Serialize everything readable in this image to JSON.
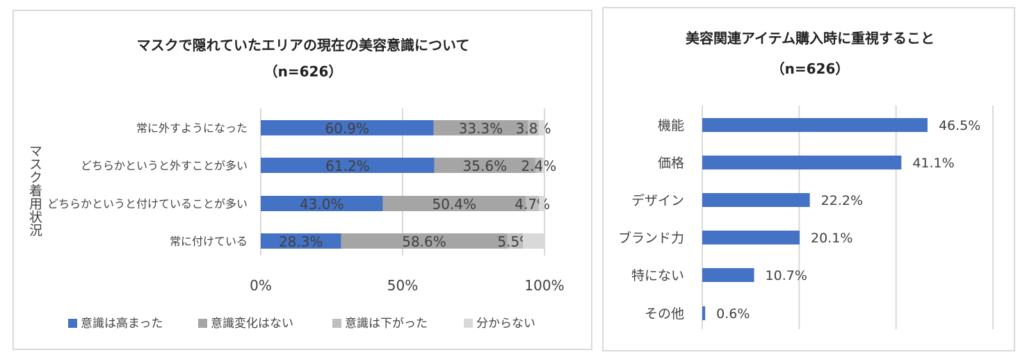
{
  "chart_data": [
    {
      "type": "bar",
      "orientation": "horizontal",
      "stacked": "percent",
      "title": "マスクで隠れていたエリアの現在の美容意識について",
      "subtitle": "（n=626）",
      "ylabel": "マスク着用状況",
      "categories": [
        "常に外すようになった",
        "どちらかというと外すことが多い",
        "どちらかというと付けていることが多い",
        "常に付けている"
      ],
      "series": [
        {
          "name": "意識は高まった",
          "color": "#4472c4",
          "values": [
            60.9,
            61.2,
            43.0,
            28.3
          ],
          "labels": [
            "60.9%",
            "61.2%",
            "43.0%",
            "28.3%"
          ]
        },
        {
          "name": "意識変化はない",
          "color": "#a5a5a5",
          "values": [
            33.3,
            35.6,
            50.4,
            58.6
          ],
          "labels": [
            "33.3%",
            "35.6%",
            "50.4%",
            "58.6%"
          ]
        },
        {
          "name": "意識は下がった",
          "color": "#bfbfbf",
          "values": [
            3.8,
            2.4,
            4.7,
            5.5
          ],
          "labels": [
            "3.8%",
            "2.4%",
            "4.7%",
            "5.5%"
          ]
        },
        {
          "name": "分からない",
          "color": "#d9d9d9",
          "values": [
            2.0,
            0.8,
            1.9,
            7.6
          ],
          "labels": [
            "",
            "",
            "",
            ""
          ]
        }
      ],
      "xticks": [
        "0%",
        "50%",
        "100%"
      ],
      "xlim": [
        0,
        100
      ],
      "grid": true,
      "legend": "bottom"
    },
    {
      "type": "bar",
      "orientation": "horizontal",
      "title": "美容関連アイテム購入時に重視すること",
      "subtitle": "（n=626）",
      "categories": [
        "機能",
        "価格",
        "デザイン",
        "ブランド力",
        "特にない",
        "その他"
      ],
      "values": [
        46.5,
        41.1,
        22.2,
        20.1,
        10.7,
        0.6
      ],
      "labels": [
        "46.5%",
        "41.1%",
        "22.2%",
        "20.1%",
        "10.7%",
        "0.6%"
      ],
      "color": "#4472c4",
      "xlim": [
        0,
        60
      ],
      "grid": true
    }
  ]
}
